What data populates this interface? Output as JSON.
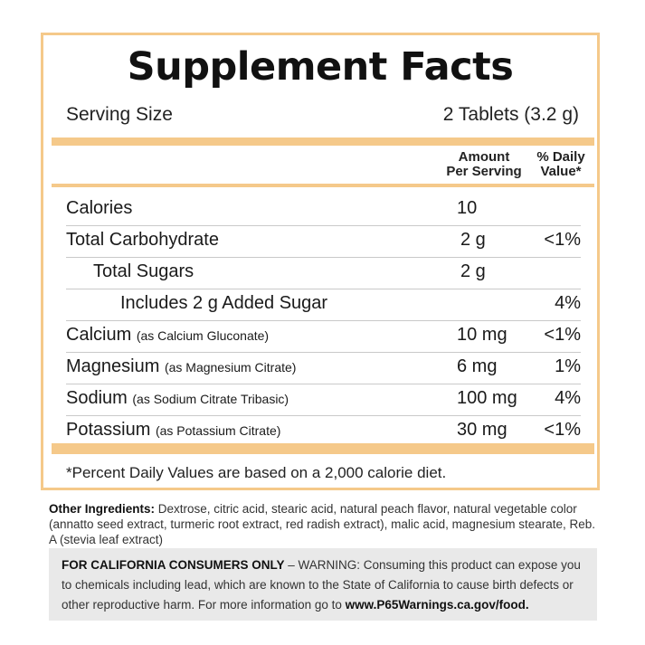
{
  "title": "Supplement Facts",
  "serving": {
    "label": "Serving Size",
    "value": "2 Tablets (3.2 g)"
  },
  "columns": {
    "amount": "Amount\nPer Serving",
    "dv": "% Daily\nValue*"
  },
  "rows": [
    {
      "name": "Calories",
      "sub": "",
      "amount": "10",
      "dv": ""
    },
    {
      "name": "Total Carbohydrate",
      "sub": "",
      "amount": "2 g",
      "dv": "<1%"
    },
    {
      "name": "Total Sugars",
      "sub": "",
      "amount": "2 g",
      "dv": ""
    },
    {
      "name": "Includes 2 g Added Sugar",
      "sub": "",
      "amount": "",
      "dv": "4%"
    },
    {
      "name": "Calcium",
      "sub": "(as Calcium Gluconate)",
      "amount": "10 mg",
      "dv": "<1%"
    },
    {
      "name": "Magnesium",
      "sub": "(as Magnesium Citrate)",
      "amount": "6 mg",
      "dv": "1%"
    },
    {
      "name": "Sodium",
      "sub": "(as Sodium Citrate Tribasic)",
      "amount": "100 mg",
      "dv": "4%"
    },
    {
      "name": "Potassium",
      "sub": "(as Potassium Citrate)",
      "amount": "30 mg",
      "dv": "<1%"
    }
  ],
  "footnote": "*Percent Daily Values are based on a 2,000 calorie diet.",
  "other_ingredients": {
    "label": "Other Ingredients:",
    "text": " Dextrose, citric acid, stearic acid, natural peach flavor, natural vegetable color (annatto seed extract, turmeric root extract, red radish extract), malic acid, magnesium stearate, Reb. A (stevia leaf extract)"
  },
  "warning": {
    "label": "FOR CALIFORNIA CONSUMERS ONLY",
    "text": " – WARNING: Consuming this product can expose you to chemicals including lead, which are known to the State of California to cause birth defects or other reproductive harm. For more information go to ",
    "link": "www.P65Warnings.ca.gov/food."
  },
  "colors": {
    "accent": "#f5c98a",
    "warning_bg": "#e9e9e9"
  }
}
